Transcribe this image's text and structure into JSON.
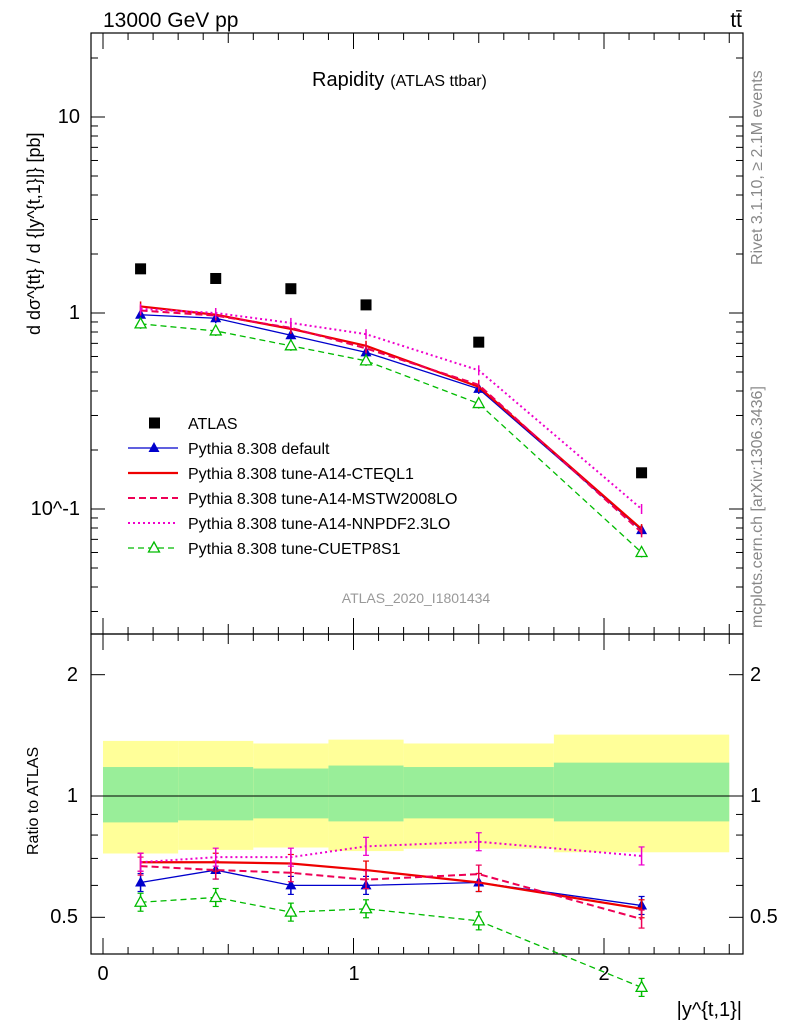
{
  "header": {
    "energy": "13000 GeV pp",
    "process": "tt̄"
  },
  "title": {
    "main": "Rapidity",
    "sub": "(ATLAS ttbar)"
  },
  "side_labels": {
    "rivet": "Rivet 3.1.10, ≥ 2.1M events",
    "mcplots": "mcplots.cern.ch [arXiv:1306.3436]"
  },
  "analysis_id": "ATLAS_2020_I1801434",
  "axes": {
    "ylabel_main": "d dσ^{tt} / d {|y^{t,1}|} [pb]",
    "ylabel_ratio": "Ratio to ATLAS",
    "xlabel": "|y^{t,1}|",
    "ytick_main": [
      "10^-1",
      "1",
      "10"
    ],
    "ytick_ratio": [
      "0.5",
      "1",
      "2"
    ],
    "xtick": [
      "0",
      "1",
      "2"
    ]
  },
  "legend": [
    {
      "label": "ATLAS",
      "color": "#000000"
    },
    {
      "label": "Pythia 8.308 default",
      "color": "#0000cc"
    },
    {
      "label": "Pythia 8.308 tune-A14-CTEQL1",
      "color": "#ee0000"
    },
    {
      "label": "Pythia 8.308 tune-A14-MSTW2008LO",
      "color": "#ee0055"
    },
    {
      "label": "Pythia 8.308 tune-A14-NNPDF2.3LO",
      "color": "#ee00cc"
    },
    {
      "label": "Pythia 8.308 tune-CUETP8S1",
      "color": "#00bb00"
    }
  ],
  "chart_data": {
    "type": "line",
    "title": "Rapidity (ATLAS ttbar)",
    "xlabel": "|y^{t,1}|",
    "ylabel": "d dσ^{tt} / d {|y^{t,1}|} [pb]",
    "xlim": [
      -0.05,
      2.55
    ],
    "ylim": [
      0.025,
      25
    ],
    "yscale": "log",
    "ratio_ylim": [
      0.34,
      2.3
    ],
    "x": [
      0.15,
      0.45,
      0.75,
      1.05,
      1.5,
      2.15
    ],
    "bin_edges": [
      0,
      0.3,
      0.6,
      0.9,
      1.2,
      1.8,
      2.5
    ],
    "atlas": [
      1.68,
      1.5,
      1.33,
      1.1,
      0.71,
      0.153
    ],
    "series": [
      {
        "name": "Pythia 8.308 default",
        "values": [
          0.98,
          0.94,
          0.77,
          0.63,
          0.41,
          0.078
        ],
        "ratio": [
          0.61,
          0.655,
          0.6,
          0.6,
          0.61,
          0.535
        ]
      },
      {
        "name": "Pythia 8.308 tune-A14-CTEQL1",
        "values": [
          1.08,
          0.98,
          0.83,
          0.68,
          0.42,
          0.079
        ],
        "ratio": [
          0.685,
          0.685,
          0.68,
          0.655,
          0.61,
          0.525
        ]
      },
      {
        "name": "Pythia 8.308 tune-A14-MSTW2008LO",
        "values": [
          1.03,
          0.97,
          0.84,
          0.66,
          0.43,
          0.076
        ],
        "ratio": [
          0.67,
          0.655,
          0.645,
          0.62,
          0.64,
          0.495
        ]
      },
      {
        "name": "Pythia 8.308 tune-A14-NNPDF2.3LO",
        "values": [
          1.05,
          1.0,
          0.89,
          0.78,
          0.51,
          0.1
        ],
        "ratio": [
          0.685,
          0.705,
          0.705,
          0.75,
          0.77,
          0.71
        ]
      },
      {
        "name": "Pythia 8.308 tune-CUETP8S1",
        "values": [
          0.88,
          0.81,
          0.68,
          0.57,
          0.345,
          0.06
        ],
        "ratio": [
          0.545,
          0.56,
          0.515,
          0.525,
          0.49,
          0.335
        ]
      }
    ],
    "band_green": [
      [
        0.86,
        1.18
      ],
      [
        0.87,
        1.18
      ],
      [
        0.88,
        1.17
      ],
      [
        0.865,
        1.19
      ],
      [
        0.88,
        1.18
      ],
      [
        0.865,
        1.21
      ]
    ],
    "band_yellow": [
      [
        0.72,
        1.37
      ],
      [
        0.735,
        1.37
      ],
      [
        0.745,
        1.35
      ],
      [
        0.73,
        1.38
      ],
      [
        0.74,
        1.35
      ],
      [
        0.725,
        1.42
      ]
    ]
  }
}
